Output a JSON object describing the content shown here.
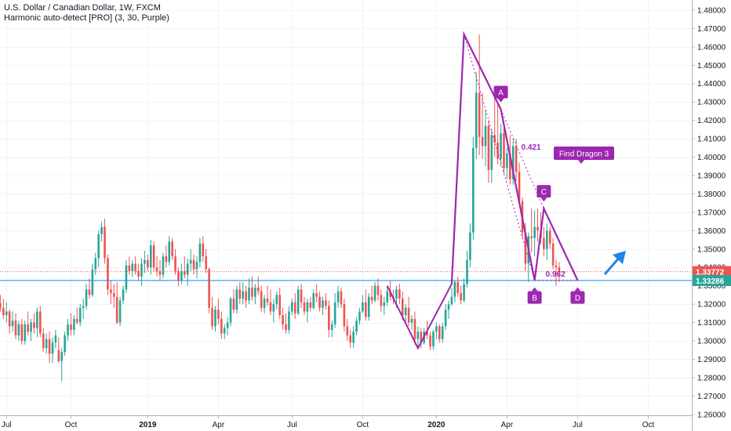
{
  "header": {
    "title": "U.S. Dollar / Canadian Dollar, 1W, FXCM",
    "indicator": "Harmonic auto-detect [PRO] (3, 30, Purple)"
  },
  "colors": {
    "up": "#26a69a",
    "down": "#ef5350",
    "pattern": "#9c27b0",
    "price_tag": "#ef5350",
    "line_tag": "#26a69a",
    "hline": "#2196f3",
    "arrow": "#1e88e5",
    "grid": "#f0f3fa"
  },
  "chart_data": {
    "type": "candlestick",
    "symbol": "USDCAD",
    "timeframe": "1W",
    "ylim": [
      1.2595,
      1.4855
    ],
    "y_ticks": [
      "1.48000",
      "1.47000",
      "1.46000",
      "1.45000",
      "1.44000",
      "1.43000",
      "1.42000",
      "1.41000",
      "1.40000",
      "1.39000",
      "1.38000",
      "1.37000",
      "1.36000",
      "1.35000",
      "1.34000",
      "1.33000",
      "1.32000",
      "1.31000",
      "1.30000",
      "1.29000",
      "1.28000",
      "1.27000",
      "1.26000"
    ],
    "x_ticks": [
      {
        "label": "Jul",
        "bold": false
      },
      {
        "label": "Oct",
        "bold": false
      },
      {
        "label": "2019",
        "bold": true
      },
      {
        "label": "Apr",
        "bold": false
      },
      {
        "label": "Jul",
        "bold": false
      },
      {
        "label": "Oct",
        "bold": false
      },
      {
        "label": "2020",
        "bold": true
      },
      {
        "label": "Apr",
        "bold": false
      },
      {
        "label": "Jul",
        "bold": false
      },
      {
        "label": "Oct",
        "bold": false
      }
    ],
    "x_tick_weeks": [
      3,
      24,
      49,
      72,
      96,
      119,
      143,
      166,
      189,
      212
    ],
    "candles": [
      [
        1.3155,
        1.3225,
        1.3125,
        1.3205
      ],
      [
        1.3205,
        1.325,
        1.316,
        1.318
      ],
      [
        1.318,
        1.323,
        1.312,
        1.314
      ],
      [
        1.314,
        1.321,
        1.31,
        1.316
      ],
      [
        1.316,
        1.317,
        1.304,
        1.308
      ],
      [
        1.308,
        1.316,
        1.305,
        1.311
      ],
      [
        1.311,
        1.315,
        1.301,
        1.303
      ],
      [
        1.303,
        1.311,
        1.3,
        1.309
      ],
      [
        1.309,
        1.312,
        1.298,
        1.3
      ],
      [
        1.3,
        1.311,
        1.298,
        1.309
      ],
      [
        1.309,
        1.316,
        1.303,
        1.305
      ],
      [
        1.305,
        1.312,
        1.3,
        1.31
      ],
      [
        1.31,
        1.315,
        1.304,
        1.307
      ],
      [
        1.307,
        1.318,
        1.302,
        1.316
      ],
      [
        1.316,
        1.319,
        1.302,
        1.304
      ],
      [
        1.304,
        1.307,
        1.294,
        1.296
      ],
      [
        1.296,
        1.304,
        1.293,
        1.301
      ],
      [
        1.301,
        1.305,
        1.288,
        1.293
      ],
      [
        1.293,
        1.302,
        1.288,
        1.299
      ],
      [
        1.299,
        1.306,
        1.296,
        1.303
      ],
      [
        1.295,
        1.302,
        1.288,
        1.289
      ],
      [
        1.289,
        1.296,
        1.278,
        1.294
      ],
      [
        1.294,
        1.305,
        1.292,
        1.303
      ],
      [
        1.303,
        1.312,
        1.3,
        1.309
      ],
      [
        1.309,
        1.315,
        1.303,
        1.306
      ],
      [
        1.306,
        1.314,
        1.303,
        1.312
      ],
      [
        1.312,
        1.318,
        1.309,
        1.31
      ],
      [
        1.31,
        1.32,
        1.308,
        1.318
      ],
      [
        1.318,
        1.323,
        1.312,
        1.319
      ],
      [
        1.319,
        1.331,
        1.317,
        1.328
      ],
      [
        1.328,
        1.334,
        1.323,
        1.325
      ],
      [
        1.325,
        1.342,
        1.324,
        1.339
      ],
      [
        1.339,
        1.348,
        1.336,
        1.345
      ],
      [
        1.345,
        1.36,
        1.34,
        1.358
      ],
      [
        1.358,
        1.365,
        1.354,
        1.362
      ],
      [
        1.362,
        1.3665,
        1.342,
        1.345
      ],
      [
        1.345,
        1.347,
        1.325,
        1.328
      ],
      [
        1.328,
        1.333,
        1.32,
        1.326
      ],
      [
        1.326,
        1.331,
        1.318,
        1.324
      ],
      [
        1.324,
        1.332,
        1.309,
        1.31
      ],
      [
        1.31,
        1.324,
        1.308,
        1.322
      ],
      [
        1.322,
        1.33,
        1.32,
        1.328
      ],
      [
        1.328,
        1.344,
        1.326,
        1.341
      ],
      [
        1.341,
        1.346,
        1.336,
        1.338
      ],
      [
        1.338,
        1.344,
        1.335,
        1.342
      ],
      [
        1.342,
        1.346,
        1.336,
        1.338
      ],
      [
        1.338,
        1.342,
        1.333,
        1.335
      ],
      [
        1.335,
        1.345,
        1.33,
        1.342
      ],
      [
        1.342,
        1.349,
        1.337,
        1.344
      ],
      [
        1.344,
        1.347,
        1.338,
        1.34
      ],
      [
        1.34,
        1.355,
        1.336,
        1.352
      ],
      [
        1.352,
        1.354,
        1.338,
        1.34
      ],
      [
        1.34,
        1.346,
        1.335,
        1.338
      ],
      [
        1.338,
        1.344,
        1.333,
        1.336
      ],
      [
        1.336,
        1.348,
        1.334,
        1.346
      ],
      [
        1.346,
        1.352,
        1.34,
        1.343
      ],
      [
        1.343,
        1.357,
        1.341,
        1.354
      ],
      [
        1.354,
        1.356,
        1.344,
        1.346
      ],
      [
        1.346,
        1.35,
        1.336,
        1.338
      ],
      [
        1.338,
        1.34,
        1.33,
        1.333
      ],
      [
        1.333,
        1.342,
        1.331,
        1.338
      ],
      [
        1.338,
        1.346,
        1.334,
        1.336
      ],
      [
        1.336,
        1.345,
        1.33,
        1.342
      ],
      [
        1.342,
        1.35,
        1.338,
        1.344
      ],
      [
        1.344,
        1.347,
        1.336,
        1.339
      ],
      [
        1.339,
        1.346,
        1.334,
        1.343
      ],
      [
        1.343,
        1.356,
        1.34,
        1.353
      ],
      [
        1.353,
        1.357,
        1.343,
        1.346
      ],
      [
        1.346,
        1.35,
        1.337,
        1.339
      ],
      [
        1.339,
        1.34,
        1.315,
        1.318
      ],
      [
        1.318,
        1.324,
        1.306,
        1.308
      ],
      [
        1.308,
        1.319,
        1.305,
        1.317
      ],
      [
        1.317,
        1.323,
        1.309,
        1.312
      ],
      [
        1.312,
        1.316,
        1.301,
        1.304
      ],
      [
        1.304,
        1.309,
        1.301,
        1.307
      ],
      [
        1.307,
        1.313,
        1.303,
        1.31
      ],
      [
        1.31,
        1.324,
        1.308,
        1.323
      ],
      [
        1.323,
        1.328,
        1.315,
        1.317
      ],
      [
        1.317,
        1.33,
        1.315,
        1.328
      ],
      [
        1.328,
        1.332,
        1.32,
        1.323
      ],
      [
        1.323,
        1.332,
        1.32,
        1.327
      ],
      [
        1.327,
        1.33,
        1.318,
        1.322
      ],
      [
        1.322,
        1.334,
        1.32,
        1.329
      ],
      [
        1.329,
        1.335,
        1.322,
        1.324
      ],
      [
        1.324,
        1.331,
        1.32,
        1.329
      ],
      [
        1.329,
        1.335,
        1.325,
        1.327
      ],
      [
        1.327,
        1.33,
        1.316,
        1.318
      ],
      [
        1.318,
        1.325,
        1.315,
        1.323
      ],
      [
        1.323,
        1.33,
        1.319,
        1.321
      ],
      [
        1.321,
        1.328,
        1.314,
        1.316
      ],
      [
        1.316,
        1.323,
        1.31,
        1.32
      ],
      [
        1.32,
        1.327,
        1.317,
        1.325
      ],
      [
        1.325,
        1.329,
        1.312,
        1.314
      ],
      [
        1.314,
        1.318,
        1.306,
        1.309
      ],
      [
        1.309,
        1.315,
        1.304,
        1.306
      ],
      [
        1.306,
        1.319,
        1.304,
        1.316
      ],
      [
        1.316,
        1.323,
        1.314,
        1.321
      ],
      [
        1.321,
        1.326,
        1.312,
        1.315
      ],
      [
        1.315,
        1.33,
        1.314,
        1.328
      ],
      [
        1.328,
        1.331,
        1.318,
        1.321
      ],
      [
        1.321,
        1.324,
        1.314,
        1.316
      ],
      [
        1.316,
        1.323,
        1.31,
        1.321
      ],
      [
        1.321,
        1.324,
        1.316,
        1.318
      ],
      [
        1.318,
        1.328,
        1.317,
        1.326
      ],
      [
        1.326,
        1.331,
        1.321,
        1.324
      ],
      [
        1.324,
        1.327,
        1.316,
        1.318
      ],
      [
        1.318,
        1.324,
        1.314,
        1.322
      ],
      [
        1.322,
        1.326,
        1.317,
        1.319
      ],
      [
        1.319,
        1.322,
        1.302,
        1.306
      ],
      [
        1.306,
        1.311,
        1.302,
        1.309
      ],
      [
        1.309,
        1.326,
        1.307,
        1.321
      ],
      [
        1.321,
        1.33,
        1.318,
        1.327
      ],
      [
        1.327,
        1.329,
        1.318,
        1.32
      ],
      [
        1.32,
        1.323,
        1.305,
        1.308
      ],
      [
        1.308,
        1.312,
        1.3,
        1.303
      ],
      [
        1.303,
        1.306,
        1.296,
        1.299
      ],
      [
        1.299,
        1.308,
        1.296,
        1.305
      ],
      [
        1.305,
        1.313,
        1.303,
        1.311
      ],
      [
        1.311,
        1.318,
        1.309,
        1.316
      ],
      [
        1.316,
        1.325,
        1.315,
        1.321
      ],
      [
        1.321,
        1.328,
        1.311,
        1.313
      ],
      [
        1.313,
        1.326,
        1.311,
        1.324
      ],
      [
        1.324,
        1.33,
        1.32,
        1.322
      ],
      [
        1.322,
        1.332,
        1.321,
        1.33
      ],
      [
        1.33,
        1.334,
        1.322,
        1.325
      ],
      [
        1.325,
        1.328,
        1.316,
        1.319
      ],
      [
        1.319,
        1.324,
        1.314,
        1.321
      ],
      [
        1.321,
        1.33,
        1.319,
        1.327
      ],
      [
        1.327,
        1.333,
        1.322,
        1.324
      ],
      [
        1.324,
        1.328,
        1.32,
        1.323
      ],
      [
        1.323,
        1.33,
        1.318,
        1.328
      ],
      [
        1.328,
        1.331,
        1.32,
        1.323
      ],
      [
        1.323,
        1.327,
        1.311,
        1.314
      ],
      [
        1.314,
        1.32,
        1.31,
        1.318
      ],
      [
        1.318,
        1.324,
        1.308,
        1.31
      ],
      [
        1.31,
        1.314,
        1.306,
        1.312
      ],
      [
        1.312,
        1.316,
        1.298,
        1.301
      ],
      [
        1.301,
        1.308,
        1.296,
        1.305
      ],
      [
        1.305,
        1.307,
        1.296,
        1.299
      ],
      [
        1.299,
        1.307,
        1.298,
        1.305
      ],
      [
        1.305,
        1.311,
        1.301,
        1.303
      ],
      [
        1.303,
        1.305,
        1.295,
        1.297
      ],
      [
        1.297,
        1.306,
        1.295,
        1.305
      ],
      [
        1.305,
        1.31,
        1.301,
        1.308
      ],
      [
        1.308,
        1.309,
        1.299,
        1.301
      ],
      [
        1.301,
        1.31,
        1.299,
        1.308
      ],
      [
        1.308,
        1.32,
        1.306,
        1.317
      ],
      [
        1.317,
        1.322,
        1.312,
        1.32
      ],
      [
        1.32,
        1.329,
        1.319,
        1.324
      ],
      [
        1.324,
        1.333,
        1.321,
        1.332
      ],
      [
        1.332,
        1.335,
        1.324,
        1.326
      ],
      [
        1.326,
        1.33,
        1.32,
        1.322
      ],
      [
        1.322,
        1.334,
        1.321,
        1.331
      ],
      [
        1.331,
        1.349,
        1.329,
        1.344
      ],
      [
        1.344,
        1.364,
        1.34,
        1.359
      ],
      [
        1.359,
        1.411,
        1.355,
        1.405
      ],
      [
        1.405,
        1.446,
        1.399,
        1.435
      ],
      [
        1.435,
        1.4668,
        1.401,
        1.411
      ],
      [
        1.411,
        1.435,
        1.399,
        1.406
      ],
      [
        1.406,
        1.426,
        1.395,
        1.417
      ],
      [
        1.417,
        1.42,
        1.386,
        1.393
      ],
      [
        1.393,
        1.415,
        1.386,
        1.412
      ],
      [
        1.412,
        1.435,
        1.4,
        1.408
      ],
      [
        1.408,
        1.43,
        1.396,
        1.399
      ],
      [
        1.399,
        1.418,
        1.395,
        1.413
      ],
      [
        1.413,
        1.416,
        1.391,
        1.394
      ],
      [
        1.394,
        1.405,
        1.388,
        1.402
      ],
      [
        1.402,
        1.412,
        1.385,
        1.388
      ],
      [
        1.388,
        1.41,
        1.385,
        1.406
      ],
      [
        1.406,
        1.41,
        1.387,
        1.392
      ],
      [
        1.392,
        1.397,
        1.374,
        1.376
      ],
      [
        1.376,
        1.378,
        1.356,
        1.359
      ],
      [
        1.359,
        1.364,
        1.338,
        1.342
      ],
      [
        1.342,
        1.359,
        1.332,
        1.357
      ],
      [
        1.357,
        1.372,
        1.348,
        1.356
      ],
      [
        1.356,
        1.371,
        1.346,
        1.362
      ],
      [
        1.362,
        1.372,
        1.354,
        1.36
      ],
      [
        1.36,
        1.37,
        1.353,
        1.356
      ],
      [
        1.356,
        1.362,
        1.346,
        1.35
      ],
      [
        1.35,
        1.364,
        1.344,
        1.36
      ],
      [
        1.36,
        1.362,
        1.35,
        1.353
      ],
      [
        1.353,
        1.356,
        1.339,
        1.341
      ],
      [
        1.341,
        1.344,
        1.33,
        1.34
      ],
      [
        1.34,
        1.343,
        1.332,
        1.3377
      ]
    ],
    "pattern": {
      "labels": [
        "A",
        "B",
        "C",
        "D"
      ],
      "ratios": [
        "0.421",
        "0.962"
      ],
      "note": "Find Dragon 3"
    },
    "price_labels": {
      "last_price": "1.33772",
      "hline_level": "1.33286"
    }
  }
}
